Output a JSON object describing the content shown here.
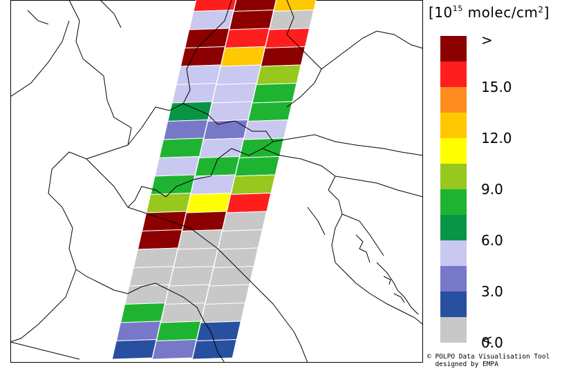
{
  "legend": {
    "title_prefix": "[10",
    "title_exponent": "15",
    "title_suffix": " molec/cm",
    "title_square": "2",
    "title_close": "]",
    "colors": [
      "#c8c8c8",
      "#2850a0",
      "#7878c8",
      "#c8c8f0",
      "#089646",
      "#1eb432",
      "#96c81e",
      "#ffff00",
      "#ffc800",
      "#ff8c1e",
      "#ff1e1e",
      "#8c0000"
    ],
    "labels": [
      {
        "text": ">",
        "index": 12
      },
      {
        "text": "15.0",
        "index": 10
      },
      {
        "text": "12.0",
        "index": 8
      },
      {
        "text": "9.0",
        "index": 6
      },
      {
        "text": "6.0",
        "index": 4
      },
      {
        "text": "3.0",
        "index": 2
      },
      {
        "text": "0.0",
        "index": 0
      },
      {
        "text": "<",
        "index": -1
      }
    ]
  },
  "credit": {
    "line1": "© POLPO Data Visualisation Tool",
    "line2": "designed by EMPA"
  },
  "swath": {
    "description_rows": [
      [
        "c10",
        "c11",
        "c8"
      ],
      [
        "c3",
        "c11",
        "c0"
      ],
      [
        "c11",
        "c10",
        "c10"
      ],
      [
        "c11",
        "c8",
        "c11"
      ],
      [
        "c3",
        "c3",
        "c6"
      ],
      [
        "c3",
        "c3",
        "c5"
      ],
      [
        "c4",
        "c3",
        "c5"
      ],
      [
        "c2",
        "c2",
        "c3"
      ],
      [
        "c5",
        "c3",
        "c5"
      ],
      [
        "c3",
        "c5",
        "c5"
      ],
      [
        "c5",
        "c3",
        "c6"
      ],
      [
        "c6",
        "c7",
        "c10"
      ],
      [
        "c11",
        "c11",
        "c0"
      ],
      [
        "c11",
        "c0",
        "c0"
      ],
      [
        "c0",
        "c0",
        "c0"
      ],
      [
        "c0",
        "c0",
        "c0"
      ],
      [
        "c0",
        "c0",
        "c0"
      ],
      [
        "c5",
        "c0",
        "c0"
      ],
      [
        "c2",
        "c5",
        "c1"
      ],
      [
        "c1",
        "c2",
        "c1"
      ]
    ]
  }
}
